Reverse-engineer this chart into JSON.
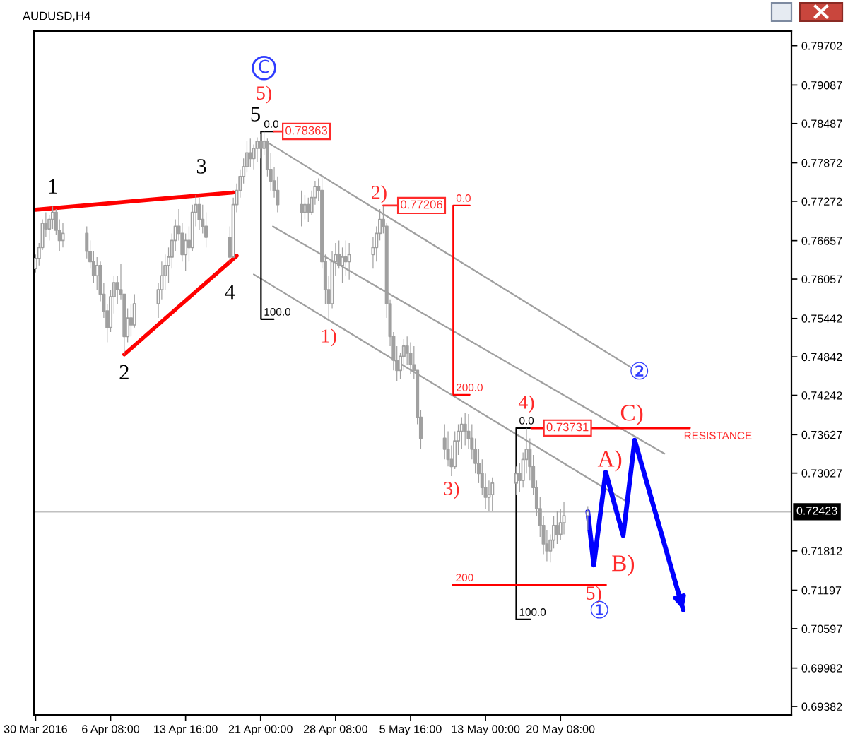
{
  "chart_data": {
    "type": "candlestick",
    "title": "AUDUSD,H4",
    "color": "#a0a0a0",
    "x": [
      "2016-03-30T00:00",
      "2016-03-30T08:00",
      "2016-03-30T16:00",
      "2016-03-31T00:00",
      "2016-03-31T08:00",
      "2016-03-31T16:00",
      "2016-04-01T00:00",
      "2016-04-01T08:00",
      "2016-04-01T16:00",
      "2016-04-04T00:00",
      "2016-04-04T08:00",
      "2016-04-04T16:00",
      "2016-04-05T00:00",
      "2016-04-05T08:00",
      "2016-04-05T16:00",
      "2016-04-06T00:00",
      "2016-04-06T08:00",
      "2016-04-06T16:00",
      "2016-04-07T00:00",
      "2016-04-07T08:00",
      "2016-04-07T16:00",
      "2016-04-08T00:00",
      "2016-04-08T08:00",
      "2016-04-08T16:00",
      "2016-04-11T00:00",
      "2016-04-11T08:00",
      "2016-04-11T16:00",
      "2016-04-12T00:00",
      "2016-04-12T08:00",
      "2016-04-12T16:00",
      "2016-04-13T00:00",
      "2016-04-13T08:00",
      "2016-04-13T16:00",
      "2016-04-14T00:00",
      "2016-04-14T08:00",
      "2016-04-14T16:00",
      "2016-04-15T00:00",
      "2016-04-15T08:00",
      "2016-04-15T16:00",
      "2016-04-18T00:00",
      "2016-04-18T08:00",
      "2016-04-18T16:00",
      "2016-04-19T00:00",
      "2016-04-19T08:00",
      "2016-04-19T16:00",
      "2016-04-20T00:00",
      "2016-04-20T08:00",
      "2016-04-20T16:00",
      "2016-04-21T00:00",
      "2016-04-21T08:00",
      "2016-04-21T16:00",
      "2016-04-22T00:00",
      "2016-04-22T08:00",
      "2016-04-22T16:00",
      "2016-04-25T00:00",
      "2016-04-25T08:00",
      "2016-04-25T16:00",
      "2016-04-26T00:00",
      "2016-04-26T08:00",
      "2016-04-26T16:00",
      "2016-04-27T00:00",
      "2016-04-27T08:00",
      "2016-04-27T16:00",
      "2016-04-28T00:00",
      "2016-04-28T08:00",
      "2016-04-28T16:00",
      "2016-04-29T00:00",
      "2016-04-29T08:00",
      "2016-04-29T16:00",
      "2016-05-02T00:00",
      "2016-05-02T08:00",
      "2016-05-02T16:00",
      "2016-05-03T00:00",
      "2016-05-03T08:00",
      "2016-05-03T16:00",
      "2016-05-04T00:00",
      "2016-05-04T08:00",
      "2016-05-04T16:00",
      "2016-05-05T00:00",
      "2016-05-05T08:00",
      "2016-05-05T16:00",
      "2016-05-06T00:00",
      "2016-05-06T08:00",
      "2016-05-06T16:00",
      "2016-05-09T00:00",
      "2016-05-09T08:00",
      "2016-05-09T16:00",
      "2016-05-10T00:00",
      "2016-05-10T08:00",
      "2016-05-10T16:00",
      "2016-05-11T00:00",
      "2016-05-11T08:00",
      "2016-05-11T16:00",
      "2016-05-12T00:00",
      "2016-05-12T08:00",
      "2016-05-12T16:00",
      "2016-05-13T00:00",
      "2016-05-13T08:00",
      "2016-05-13T16:00",
      "2016-05-16T00:00",
      "2016-05-16T08:00",
      "2016-05-16T16:00",
      "2016-05-17T00:00",
      "2016-05-17T08:00",
      "2016-05-17T16:00",
      "2016-05-18T00:00",
      "2016-05-18T08:00",
      "2016-05-18T16:00",
      "2016-05-19T00:00",
      "2016-05-19T08:00",
      "2016-05-19T16:00",
      "2016-05-20T00:00",
      "2016-05-20T08:00",
      "2016-05-20T16:00",
      "2016-05-23T00:00"
    ],
    "ohlc": [
      [
        0.7622,
        0.7644,
        0.7616,
        0.7638
      ],
      [
        0.7638,
        0.7662,
        0.7627,
        0.7655
      ],
      [
        0.7655,
        0.7699,
        0.7651,
        0.7693
      ],
      [
        0.7693,
        0.771,
        0.7671,
        0.7684
      ],
      [
        0.7684,
        0.7706,
        0.7666,
        0.7699
      ],
      [
        0.7699,
        0.7719,
        0.7684,
        0.771
      ],
      [
        0.771,
        0.7715,
        0.7675,
        0.7682
      ],
      [
        0.7682,
        0.7699,
        0.7649,
        0.7666
      ],
      [
        0.7666,
        0.7693,
        0.7655,
        0.7677
      ],
      [
        0.7677,
        0.7688,
        0.7638,
        0.7649
      ],
      [
        0.7649,
        0.7666,
        0.7622,
        0.7633
      ],
      [
        0.7633,
        0.7649,
        0.76,
        0.7611
      ],
      [
        0.7611,
        0.764,
        0.7589,
        0.7627
      ],
      [
        0.7627,
        0.7633,
        0.7571,
        0.7582
      ],
      [
        0.7582,
        0.76,
        0.7545,
        0.7556
      ],
      [
        0.7556,
        0.7567,
        0.7507,
        0.753
      ],
      [
        0.753,
        0.7589,
        0.7523,
        0.7578
      ],
      [
        0.7578,
        0.7611,
        0.7552,
        0.76
      ],
      [
        0.76,
        0.7611,
        0.7567,
        0.7589
      ],
      [
        0.7589,
        0.7629,
        0.7574,
        0.7582
      ],
      [
        0.7582,
        0.7582,
        0.7488,
        0.7516
      ],
      [
        0.7516,
        0.756,
        0.7507,
        0.7545
      ],
      [
        0.7545,
        0.7567,
        0.7516,
        0.7534
      ],
      [
        0.7534,
        0.7582,
        0.753,
        0.7567
      ],
      [
        0.7567,
        0.76,
        0.7545,
        0.7589
      ],
      [
        0.7589,
        0.7633,
        0.7574,
        0.7611
      ],
      [
        0.7611,
        0.7644,
        0.7589,
        0.7627
      ],
      [
        0.7627,
        0.7655,
        0.76,
        0.764
      ],
      [
        0.764,
        0.7677,
        0.7622,
        0.7666
      ],
      [
        0.7666,
        0.7699,
        0.7649,
        0.7688
      ],
      [
        0.7688,
        0.7715,
        0.7666,
        0.7677
      ],
      [
        0.7677,
        0.7693,
        0.7633,
        0.7644
      ],
      [
        0.7644,
        0.7677,
        0.7618,
        0.7666
      ],
      [
        0.7666,
        0.7688,
        0.7633,
        0.7655
      ],
      [
        0.7655,
        0.7722,
        0.7649,
        0.771
      ],
      [
        0.771,
        0.7737,
        0.7688,
        0.7722
      ],
      [
        0.7722,
        0.7733,
        0.7682,
        0.7699
      ],
      [
        0.7699,
        0.7722,
        0.7677,
        0.7688
      ],
      [
        0.7688,
        0.771,
        0.7655,
        0.7671
      ],
      [
        0.7671,
        0.7688,
        0.7629,
        0.764
      ],
      [
        0.764,
        0.7733,
        0.764,
        0.7722
      ],
      [
        0.7722,
        0.7755,
        0.771,
        0.7744
      ],
      [
        0.7744,
        0.7777,
        0.7733,
        0.7766
      ],
      [
        0.7766,
        0.7794,
        0.7755,
        0.7781
      ],
      [
        0.7781,
        0.7821,
        0.7772,
        0.7803
      ],
      [
        0.7803,
        0.7825,
        0.7781,
        0.7794
      ],
      [
        0.7794,
        0.7816,
        0.7777,
        0.781
      ],
      [
        0.781,
        0.7827,
        0.7788,
        0.7821
      ],
      [
        0.7821,
        0.7832,
        0.7794,
        0.781
      ],
      [
        0.781,
        0.78363,
        0.7799,
        0.7821
      ],
      [
        0.7821,
        0.7825,
        0.7766,
        0.7777
      ],
      [
        0.7777,
        0.7803,
        0.7744,
        0.7759
      ],
      [
        0.7759,
        0.7781,
        0.7733,
        0.7744
      ],
      [
        0.7744,
        0.7766,
        0.771,
        0.7722
      ],
      [
        0.7722,
        0.7744,
        0.7688,
        0.771
      ],
      [
        0.771,
        0.7737,
        0.7699,
        0.7722
      ],
      [
        0.7722,
        0.7733,
        0.7695,
        0.771
      ],
      [
        0.771,
        0.7744,
        0.7706,
        0.7733
      ],
      [
        0.7733,
        0.7759,
        0.7722,
        0.775
      ],
      [
        0.775,
        0.7763,
        0.7728,
        0.7744
      ],
      [
        0.7744,
        0.7766,
        0.7622,
        0.7633
      ],
      [
        0.7633,
        0.7644,
        0.7567,
        0.7589
      ],
      [
        0.7589,
        0.7611,
        0.7543,
        0.7567
      ],
      [
        0.7567,
        0.7649,
        0.756,
        0.7633
      ],
      [
        0.7633,
        0.7662,
        0.7611,
        0.7644
      ],
      [
        0.7644,
        0.7666,
        0.7622,
        0.7627
      ],
      [
        0.7627,
        0.7655,
        0.76,
        0.764
      ],
      [
        0.764,
        0.7666,
        0.7611,
        0.7633
      ],
      [
        0.7633,
        0.7662,
        0.7605,
        0.7644
      ],
      [
        0.7644,
        0.7671,
        0.7622,
        0.7655
      ],
      [
        0.7655,
        0.7688,
        0.7633,
        0.7677
      ],
      [
        0.7677,
        0.7715,
        0.7666,
        0.7699
      ],
      [
        0.7699,
        0.77206,
        0.7677,
        0.7688
      ],
      [
        0.7688,
        0.7693,
        0.7545,
        0.7567
      ],
      [
        0.7567,
        0.7574,
        0.7501,
        0.7516
      ],
      [
        0.7516,
        0.7523,
        0.7463,
        0.7479
      ],
      [
        0.7479,
        0.7501,
        0.7446,
        0.7463
      ],
      [
        0.7463,
        0.749,
        0.745,
        0.7485
      ],
      [
        0.7485,
        0.7512,
        0.7463,
        0.7501
      ],
      [
        0.7501,
        0.7516,
        0.7472,
        0.749
      ],
      [
        0.749,
        0.7507,
        0.7457,
        0.7472
      ],
      [
        0.7472,
        0.7501,
        0.745,
        0.7463
      ],
      [
        0.7463,
        0.7463,
        0.7379,
        0.739
      ],
      [
        0.739,
        0.7401,
        0.734,
        0.7357
      ],
      [
        0.7357,
        0.7379,
        0.7324,
        0.734
      ],
      [
        0.734,
        0.7368,
        0.7313,
        0.7324
      ],
      [
        0.7324,
        0.7346,
        0.7298,
        0.7313
      ],
      [
        0.7313,
        0.7368,
        0.7309,
        0.7353
      ],
      [
        0.7353,
        0.7379,
        0.7331,
        0.7368
      ],
      [
        0.7368,
        0.739,
        0.734,
        0.7379
      ],
      [
        0.7379,
        0.7397,
        0.7346,
        0.7368
      ],
      [
        0.7368,
        0.7395,
        0.734,
        0.7357
      ],
      [
        0.7357,
        0.7379,
        0.7324,
        0.734
      ],
      [
        0.734,
        0.7357,
        0.7302,
        0.7318
      ],
      [
        0.7318,
        0.734,
        0.7287,
        0.7302
      ],
      [
        0.7302,
        0.7324,
        0.7269,
        0.728
      ],
      [
        0.728,
        0.7302,
        0.7247,
        0.7265
      ],
      [
        0.7265,
        0.7291,
        0.7243,
        0.7269
      ],
      [
        0.7269,
        0.7296,
        0.7243,
        0.7287
      ],
      [
        0.7287,
        0.7313,
        0.7269,
        0.7302
      ],
      [
        0.7302,
        0.7318,
        0.7273,
        0.7291
      ],
      [
        0.7291,
        0.7335,
        0.728,
        0.7324
      ],
      [
        0.7324,
        0.73731,
        0.7302,
        0.734
      ],
      [
        0.734,
        0.7357,
        0.7291,
        0.7313
      ],
      [
        0.7313,
        0.7331,
        0.7269,
        0.728
      ],
      [
        0.728,
        0.7291,
        0.7236,
        0.7247
      ],
      [
        0.7247,
        0.7265,
        0.7203,
        0.7221
      ],
      [
        0.7221,
        0.7236,
        0.7176,
        0.7192
      ],
      [
        0.7192,
        0.7214,
        0.7165,
        0.7181
      ],
      [
        0.7181,
        0.7207,
        0.7163,
        0.7198
      ],
      [
        0.7198,
        0.7236,
        0.7185,
        0.7221
      ],
      [
        0.7221,
        0.7243,
        0.7192,
        0.7207
      ],
      [
        0.7207,
        0.7247,
        0.7198,
        0.7225
      ],
      [
        0.7225,
        0.7258,
        0.7207,
        0.7236
      ],
      [
        0.7236,
        0.7251,
        0.7214,
        0.72423
      ]
    ],
    "series": [
      {
        "type": "line",
        "color": "#ff0000",
        "x": [
          "2016-03-30T00:00",
          "2016-04-18T08:00"
        ],
        "values": [
          0.7714,
          0.7741
        ]
      },
      {
        "type": "line",
        "color": "#ff0000",
        "x": [
          "2016-04-07T16:00",
          "2016-04-18T16:00"
        ],
        "values": [
          0.7488,
          0.7642
        ]
      },
      {
        "type": "line",
        "color": "#a0a0a0",
        "x": [
          "2016-04-21T12:00",
          "2016-05-27T05:00"
        ],
        "values": [
          0.7821,
          0.7468
        ]
      },
      {
        "type": "line",
        "color": "#a0a0a0",
        "x": [
          "2016-04-22T05:00",
          "2016-05-30T12:00"
        ],
        "values": [
          0.7688,
          0.7333
        ]
      },
      {
        "type": "line",
        "color": "#a0a0a0",
        "x": [
          "2016-04-20T08:00",
          "2016-05-26T20:00"
        ],
        "values": [
          0.7613,
          0.7258
        ]
      },
      {
        "type": "line",
        "color": "#000000",
        "x": [
          "2016-04-22T07:00",
          "2016-04-21T01:00",
          "2016-04-21T01:00",
          "2016-04-22T07:00"
        ],
        "values": [
          0.78363,
          0.78363,
          0.7543,
          0.7543
        ]
      },
      {
        "type": "line",
        "color": "#ff0000",
        "x": [
          "2016-05-11T11:00",
          "2016-05-09T20:00",
          "2016-05-09T20:00",
          "2016-05-11T11:00"
        ],
        "values": [
          0.77206,
          0.77206,
          0.7425,
          0.7425
        ]
      },
      {
        "type": "line",
        "color": "#000000",
        "x": [
          "2016-05-17T09:00",
          "2016-05-16T00:00",
          "2016-05-16T00:00",
          "2016-05-17T09:00"
        ],
        "values": [
          0.73731,
          0.73731,
          0.7074,
          0.7074
        ]
      },
      {
        "type": "line",
        "color": "#ff0000",
        "x": [
          "2016-05-17T12:00",
          "2016-06-01T23:00"
        ],
        "values": [
          0.73731,
          0.73731
        ]
      },
      {
        "type": "line",
        "color": "#ff0000",
        "x": [
          "2016-05-09T19:00",
          "2016-05-24T18:00"
        ],
        "values": [
          0.7128,
          0.7128
        ]
      },
      {
        "type": "line",
        "color": "#0000ff",
        "x": [
          "2016-05-23T00:00",
          "2016-05-23T14:00",
          "2016-05-24T18:00",
          "2016-05-26T11:00",
          "2016-05-27T14:00",
          "2016-06-01T08:00"
        ],
        "values": [
          0.72423,
          0.7159,
          0.7304,
          0.7205,
          0.7354,
          0.7089
        ]
      }
    ],
    "xlim": [
      "2016-03-29T20:00",
      "2016-06-11T22:00"
    ],
    "ylim": [
      0.6925,
      0.7993
    ],
    "xticks": [
      {
        "value": "2016-03-30T00:00",
        "label": "30 Mar 2016"
      },
      {
        "value": "2016-04-06T08:00",
        "label": "6 Apr 08:00"
      },
      {
        "value": "2016-04-13T16:00",
        "label": "13 Apr 16:00"
      },
      {
        "value": "2016-04-21T00:00",
        "label": "21 Apr 00:00"
      },
      {
        "value": "2016-04-28T08:00",
        "label": "28 Apr 08:00"
      },
      {
        "value": "2016-05-05T16:00",
        "label": "5 May 16:00"
      },
      {
        "value": "2016-05-13T00:00",
        "label": "13 May 00:00"
      },
      {
        "value": "2016-05-20T08:00",
        "label": "20 May 08:00"
      }
    ],
    "yticks": [
      0.79702,
      0.79087,
      0.78487,
      0.77872,
      0.77272,
      0.76657,
      0.76057,
      0.75442,
      0.74842,
      0.74242,
      0.73627,
      0.73027,
      0.71812,
      0.71197,
      0.70597,
      0.69982,
      0.69382
    ],
    "ref_lines": [
      {
        "axis": "y",
        "value": 0.72423,
        "label": "0.72423",
        "color": "#c0c0c0"
      }
    ],
    "annotations": [
      {
        "text": "1",
        "x": "2016-03-31T16:00",
        "y": 0.7719
      },
      {
        "text": "2",
        "x": "2016-04-07T16:00",
        "y": 0.7488
      },
      {
        "text": "3",
        "x": "2016-04-14T16:00",
        "y": 0.7737
      },
      {
        "text": "4",
        "x": "2016-04-18T00:00",
        "y": 0.7629
      },
      {
        "text": "5",
        "x": "2016-04-21T08:00",
        "y": 0.78363
      },
      {
        "text": "5)",
        "x": "2016-04-21T08:00",
        "y": 0.78363
      },
      "C",
      {
        "text": "1)",
        "x": "2016-04-27T16:00",
        "y": 0.7543
      },
      {
        "text": "2)",
        "x": "2016-05-03T00:00",
        "y": 0.77206
      },
      {
        "text": "3)",
        "x": "2016-05-09T16:00",
        "y": 0.7298
      },
      {
        "text": "4)",
        "x": "2016-05-17T00:00",
        "y": 0.73731
      },
      {
        "text": "5)",
        "x": "2016-05-23T14:00",
        "y": 0.7128
      },
      {
        "text": "①",
        "x": "2016-05-23T14:00",
        "y": 0.7128
      },
      {
        "text": "②",
        "x": "2016-05-27T05:00",
        "y": 0.7468
      },
      {
        "text": "A)",
        "x": "2016-05-24T18:00",
        "y": 0.7304
      },
      {
        "text": "B)",
        "x": "2016-05-26T11:00",
        "y": 0.7205
      },
      {
        "text": "C)",
        "x": "2016-05-27T14:00",
        "y": 0.7354
      },
      {
        "text": "0.78363",
        "x": "2016-04-22T07:00",
        "y": 0.78363
      },
      {
        "text": "0.77206",
        "x": "2016-05-03T00:00",
        "y": 0.77206
      },
      {
        "text": "0.73731",
        "x": "2016-05-17T00:00",
        "y": 0.73731
      },
      {
        "text": "0.0",
        "x": "2016-04-21T01:00",
        "y": 0.78363
      },
      {
        "text": "100.0",
        "x": "2016-04-21T01:00",
        "y": 0.7543
      },
      {
        "text": "0.0",
        "x": "2016-05-09T20:00",
        "y": 0.77206
      },
      {
        "text": "200.0",
        "x": "2016-05-09T20:00",
        "y": 0.7425
      },
      {
        "text": "0.0",
        "x": "2016-05-16T00:00",
        "y": 0.73731
      },
      {
        "text": "100.0",
        "x": "2016-05-16T00:00",
        "y": 0.7074
      },
      {
        "text": "200",
        "x": "2016-05-09T19:00",
        "y": 0.7128
      },
      {
        "text": "RESISTANCE",
        "x": "2016-06-01T23:00",
        "y": 0.73731
      }
    ]
  }
}
